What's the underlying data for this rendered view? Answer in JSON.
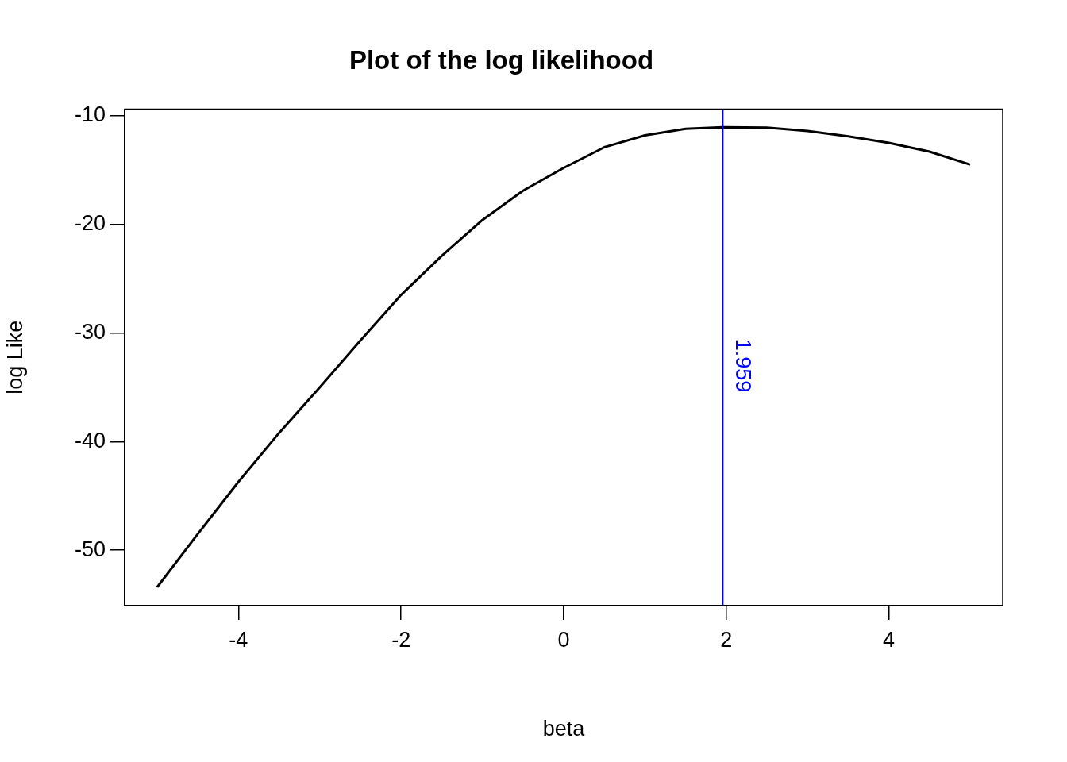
{
  "chart_data": {
    "type": "line",
    "title": "Plot of the log likelihood",
    "xlabel": "beta",
    "ylabel": "log Like",
    "x": [
      -5,
      -4.5,
      -4,
      -3.5,
      -3,
      -2.5,
      -2,
      -1.5,
      -1,
      -0.5,
      0,
      0.5,
      1,
      1.5,
      1.959,
      2.5,
      3,
      3.5,
      4,
      4.5,
      5
    ],
    "series": [
      {
        "color": "#000000",
        "values": [
          -53.4,
          -48.5,
          -43.7,
          -39.2,
          -35.0,
          -30.7,
          -26.5,
          -22.9,
          -19.6,
          -16.9,
          -14.8,
          -12.9,
          -11.8,
          -11.2,
          -11.06,
          -11.1,
          -11.4,
          -11.9,
          -12.5,
          -13.3,
          -14.5
        ]
      }
    ],
    "xlim": [
      -5.4,
      5.4
    ],
    "xticks": [
      -4,
      -2,
      0,
      2,
      4
    ],
    "ylim": [
      -55.1,
      -9.4
    ],
    "yticks": [
      -10,
      -20,
      -30,
      -40,
      -50
    ],
    "ref_lines": [
      {
        "axis": "x",
        "value": 1.959,
        "label": "1.959",
        "color": "#0000ff"
      }
    ],
    "grid": false,
    "legend": false,
    "marker": "none",
    "line_style": "solid"
  }
}
